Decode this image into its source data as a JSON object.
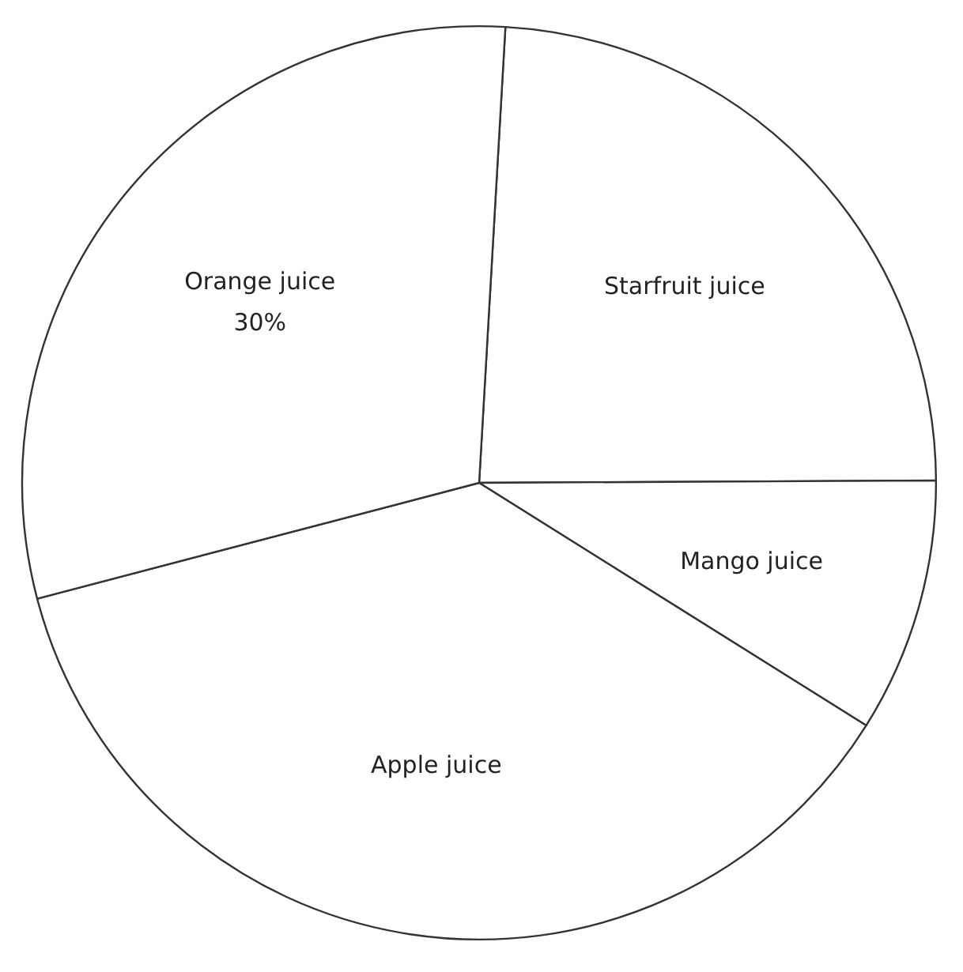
{
  "chart_data": {
    "type": "pie",
    "categories": [
      "Starfruit juice",
      "Mango juice",
      "Apple juice",
      "Orange juice"
    ],
    "values": [
      24,
      9,
      37,
      30
    ],
    "colors": [
      "#ffffff",
      "#ffffff",
      "#ffffff",
      "#ffffff"
    ],
    "value_labels": [
      null,
      null,
      null,
      "30%"
    ]
  }
}
